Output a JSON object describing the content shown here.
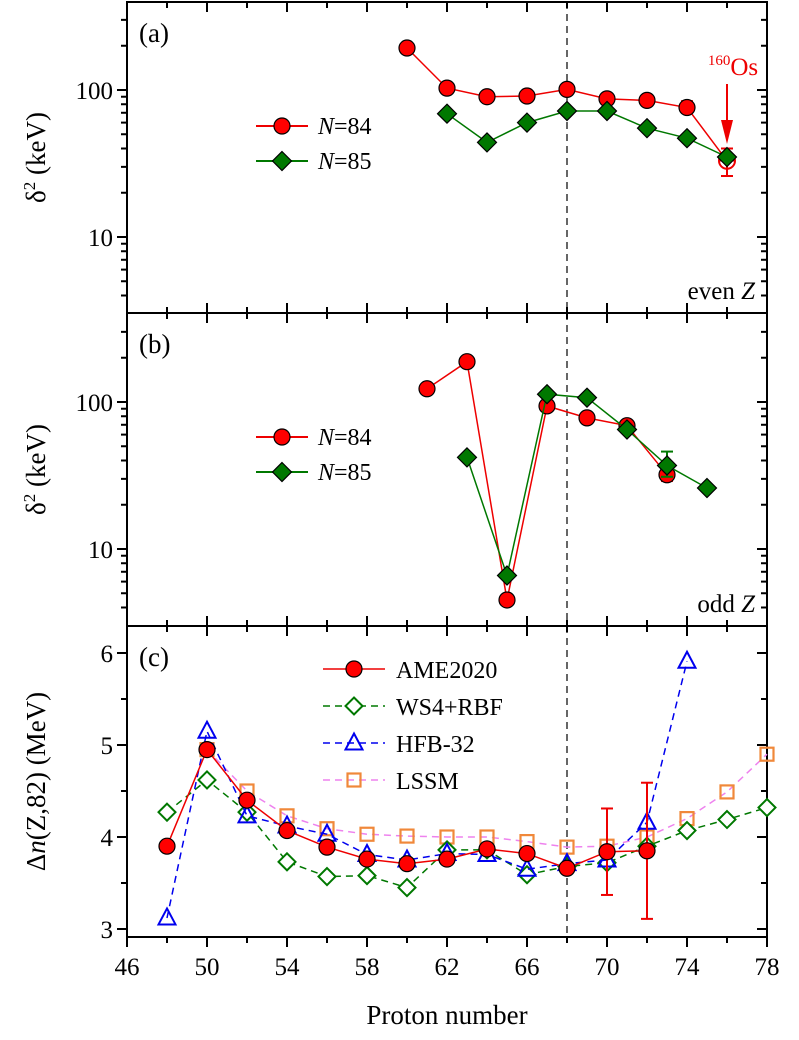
{
  "chart_data": [
    {
      "type": "line",
      "panel_label": "(a)",
      "note": "even Z",
      "ylabel_main": "δ",
      "ylabel_sup": "2",
      "ylabel_unit": " (keV)",
      "yscale": "log",
      "ylim": [
        3.2,
        330
      ],
      "xlim": [
        46,
        78
      ],
      "yticks": [
        {
          "value": 10,
          "label": "10"
        },
        {
          "value": 100,
          "label": "100"
        }
      ],
      "legend": {
        "placement": "center-left",
        "entries": [
          {
            "name_italic": "N",
            "name_rest": "=84",
            "color": "#ee0000",
            "marker": "circle"
          },
          {
            "name_italic": "N",
            "name_rest": "=85",
            "color": "#007800",
            "marker": "diamond"
          }
        ]
      },
      "annotation": {
        "sup": "160",
        "text": "Os",
        "x": 76,
        "color": "#ee0000"
      },
      "vline_x": 68,
      "series": [
        {
          "name": "N=84",
          "color": "#ee0000",
          "marker": "circle",
          "x": [
            60,
            62,
            64,
            66,
            68,
            70,
            72,
            74,
            76
          ],
          "y": [
            193,
            103,
            90,
            91,
            101,
            87,
            85,
            76,
            33
          ],
          "err": [
            null,
            null,
            null,
            null,
            null,
            null,
            null,
            [
              70,
              84
            ],
            [
              26,
              40
            ]
          ],
          "open": [
            false,
            false,
            false,
            false,
            false,
            false,
            false,
            false,
            true
          ]
        },
        {
          "name": "N=85",
          "color": "#007800",
          "marker": "diamond",
          "x": [
            62,
            64,
            66,
            68,
            70,
            72,
            74,
            76
          ],
          "y": [
            69,
            44,
            60,
            72,
            72,
            55,
            47,
            35
          ],
          "err": [
            null,
            null,
            null,
            null,
            null,
            null,
            null,
            null
          ],
          "open": [
            false,
            false,
            false,
            false,
            false,
            false,
            false,
            false
          ]
        }
      ]
    },
    {
      "type": "line",
      "panel_label": "(b)",
      "note": "odd Z",
      "ylabel_main": "δ",
      "ylabel_sup": "2",
      "ylabel_unit": " (keV)",
      "yscale": "log",
      "ylim": [
        3.2,
        330
      ],
      "xlim": [
        46,
        78
      ],
      "yticks": [
        {
          "value": 10,
          "label": "10"
        },
        {
          "value": 100,
          "label": "100"
        }
      ],
      "legend": {
        "placement": "center-left",
        "entries": [
          {
            "name_italic": "N",
            "name_rest": "=84",
            "color": "#ee0000",
            "marker": "circle"
          },
          {
            "name_italic": "N",
            "name_rest": "=85",
            "color": "#007800",
            "marker": "diamond"
          }
        ]
      },
      "vline_x": 68,
      "series": [
        {
          "name": "N=84",
          "color": "#ee0000",
          "marker": "circle",
          "x": [
            61,
            63,
            65,
            67,
            69,
            71,
            73
          ],
          "y": [
            123,
            188,
            4.5,
            94,
            78,
            69,
            32
          ],
          "err": [
            null,
            null,
            [
              4.2,
              4.8
            ],
            null,
            null,
            null,
            [
              29,
              36
            ]
          ],
          "open": [
            false,
            false,
            false,
            false,
            false,
            false,
            false
          ]
        },
        {
          "name": "N=85",
          "color": "#007800",
          "marker": "diamond",
          "x": [
            63,
            65,
            67,
            69,
            71,
            73,
            75
          ],
          "y": [
            42,
            6.6,
            113,
            107,
            65,
            37,
            26
          ],
          "err": [
            null,
            null,
            null,
            null,
            null,
            [
              31,
              46
            ],
            null
          ],
          "open": [
            false,
            false,
            false,
            false,
            false,
            false,
            false
          ]
        }
      ]
    },
    {
      "type": "line",
      "panel_label": "(c)",
      "ylabel_prefix": "Δ",
      "ylabel_italic": "n",
      "ylabel_rest": "(Z,82) (MeV)",
      "yscale": "linear",
      "ylim": [
        2.8,
        6.3
      ],
      "xlim": [
        46,
        78
      ],
      "xlabel": "Proton number",
      "xticks": [
        {
          "value": 46,
          "label": "46"
        },
        {
          "value": 50,
          "label": "50"
        },
        {
          "value": 54,
          "label": "54"
        },
        {
          "value": 58,
          "label": "58"
        },
        {
          "value": 62,
          "label": "62"
        },
        {
          "value": 66,
          "label": "66"
        },
        {
          "value": 70,
          "label": "70"
        },
        {
          "value": 74,
          "label": "74"
        },
        {
          "value": 78,
          "label": "78"
        }
      ],
      "yticks": [
        {
          "value": 3,
          "label": "3"
        },
        {
          "value": 4,
          "label": "4"
        },
        {
          "value": 5,
          "label": "5"
        },
        {
          "value": 6,
          "label": "6"
        }
      ],
      "legend": {
        "placement": "top-center",
        "entries": [
          {
            "name": "AME2020",
            "color": "#ee0000",
            "marker": "circle",
            "dash": false
          },
          {
            "name": "WS4+RBF",
            "color": "#007800",
            "marker": "diamond-open",
            "dash": true
          },
          {
            "name": "HFB-32",
            "color": "#0000ee",
            "marker": "triangle-open",
            "dash": true
          },
          {
            "name": "LSSM",
            "color": "#f0883a",
            "line_color": "#ee82ee",
            "marker": "square-open",
            "dash": true
          }
        ]
      },
      "vline_x": 68,
      "series": [
        {
          "name": "LSSM",
          "color": "#f0883a",
          "line_color": "#ee82ee",
          "marker": "square-open",
          "dash": true,
          "x": [
            50,
            52,
            54,
            56,
            58,
            60,
            62,
            64,
            66,
            68,
            70,
            72,
            74,
            76,
            78
          ],
          "y": [
            4.95,
            4.5,
            4.23,
            4.09,
            4.03,
            4.01,
            4.0,
            4.0,
            3.95,
            3.89,
            3.9,
            4.0,
            4.2,
            4.49,
            4.9
          ]
        },
        {
          "name": "WS4+RBF",
          "color": "#007800",
          "line_color": "#007800",
          "marker": "diamond-open",
          "dash": true,
          "x": [
            48,
            50,
            52,
            54,
            56,
            58,
            60,
            62,
            64,
            66,
            68,
            70,
            72,
            74,
            76,
            78
          ],
          "y": [
            4.27,
            4.62,
            4.27,
            3.73,
            3.57,
            3.58,
            3.45,
            3.86,
            3.86,
            3.59,
            3.68,
            3.72,
            3.9,
            4.07,
            4.19,
            4.32
          ]
        },
        {
          "name": "HFB-32",
          "color": "#0000ee",
          "line_color": "#0000ee",
          "marker": "triangle-open",
          "dash": true,
          "x": [
            48,
            50,
            52,
            54,
            56,
            58,
            60,
            62,
            64,
            66,
            68,
            70,
            72,
            74
          ],
          "y": [
            3.12,
            5.15,
            4.23,
            4.12,
            4.03,
            3.81,
            3.75,
            3.82,
            3.81,
            3.65,
            3.71,
            3.75,
            4.16,
            5.91
          ]
        },
        {
          "name": "AME2020",
          "color": "#ee0000",
          "line_color": "#ee0000",
          "marker": "circle",
          "dash": false,
          "x": [
            48,
            50,
            52,
            54,
            56,
            58,
            60,
            62,
            64,
            66,
            68,
            70,
            72
          ],
          "y": [
            3.9,
            4.95,
            4.4,
            4.07,
            3.89,
            3.76,
            3.71,
            3.76,
            3.87,
            3.82,
            3.66,
            3.84,
            3.85
          ],
          "err": [
            null,
            null,
            null,
            null,
            null,
            null,
            null,
            null,
            null,
            null,
            null,
            [
              3.37,
              4.31
            ],
            [
              3.11,
              4.59
            ]
          ]
        }
      ]
    }
  ]
}
